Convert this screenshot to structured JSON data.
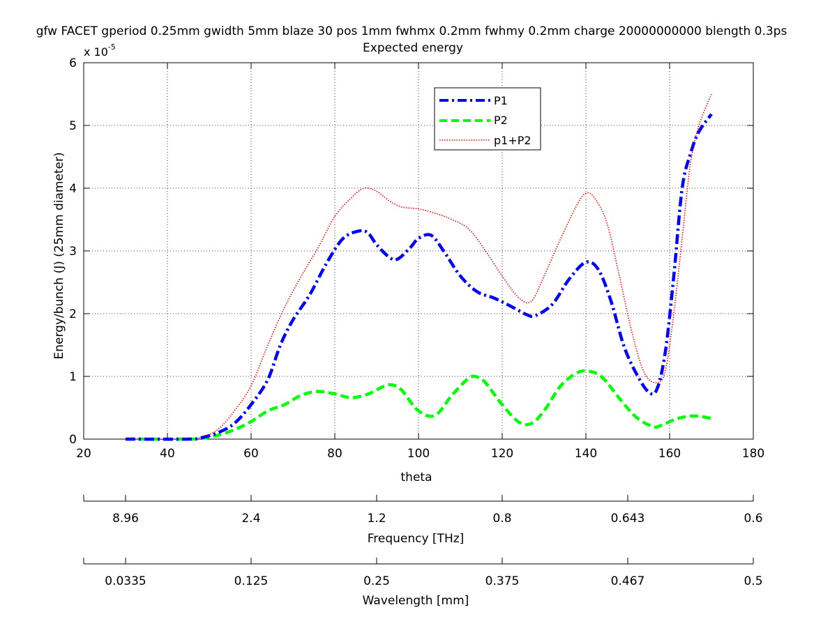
{
  "chart_data": {
    "type": "line",
    "title_line1": "gfw FACET gperiod 0.25mm gwidth 5mm blaze 30 pos 1mm fwhmx 0.2mm fwhmy 0.2mm charge 20000000000 blength 0.3ps",
    "title_line2": "Expected energy",
    "xlabel": "theta",
    "ylabel": "Energy/bunch (J) (25mm diameter)",
    "y_multiplier_base": "x 10",
    "y_multiplier_exp": "-5",
    "xlim": [
      20,
      180
    ],
    "ylim": [
      0,
      6
    ],
    "x_ticks": [
      20,
      40,
      60,
      80,
      100,
      120,
      140,
      160,
      180
    ],
    "y_ticks": [
      0,
      1,
      2,
      3,
      4,
      5,
      6
    ],
    "grid": true,
    "legend_position": "top-center",
    "series": [
      {
        "name": "P1",
        "color": "#0000ff",
        "style": "dash-dot",
        "x": [
          30,
          45,
          48,
          52,
          56,
          60,
          64,
          67,
          70,
          74,
          78,
          82,
          86,
          88,
          90,
          93,
          95,
          98,
          100,
          103,
          106,
          110,
          114,
          118,
          122,
          126,
          128,
          132,
          136,
          140,
          143,
          146,
          149,
          152,
          155,
          157,
          159,
          161,
          163,
          165,
          167,
          170
        ],
        "y": [
          0.0,
          0.0,
          0.02,
          0.1,
          0.25,
          0.55,
          0.95,
          1.5,
          1.9,
          2.3,
          2.8,
          3.2,
          3.32,
          3.28,
          3.1,
          2.9,
          2.87,
          3.05,
          3.2,
          3.25,
          3.0,
          2.6,
          2.35,
          2.25,
          2.12,
          1.98,
          1.97,
          2.15,
          2.55,
          2.82,
          2.7,
          2.2,
          1.5,
          1.05,
          0.75,
          0.8,
          1.4,
          2.6,
          4.0,
          4.55,
          4.9,
          5.18
        ]
      },
      {
        "name": "P2",
        "color": "#00ff00",
        "style": "dashed",
        "x": [
          30,
          45,
          48,
          52,
          56,
          60,
          64,
          68,
          72,
          76,
          80,
          84,
          88,
          92,
          94,
          96,
          100,
          104,
          108,
          112,
          114,
          116,
          120,
          124,
          127,
          130,
          134,
          138,
          141,
          144,
          148,
          152,
          156,
          158,
          162,
          166,
          170
        ],
        "y": [
          0.0,
          0.0,
          0.01,
          0.06,
          0.15,
          0.28,
          0.45,
          0.55,
          0.7,
          0.76,
          0.72,
          0.66,
          0.72,
          0.85,
          0.86,
          0.78,
          0.45,
          0.38,
          0.7,
          0.97,
          0.99,
          0.9,
          0.55,
          0.27,
          0.25,
          0.45,
          0.85,
          1.06,
          1.08,
          0.98,
          0.65,
          0.35,
          0.2,
          0.22,
          0.33,
          0.37,
          0.33
        ]
      },
      {
        "name": "p1+P2",
        "color": "#ff0000",
        "style": "dotted",
        "x": [
          30,
          45,
          48,
          52,
          56,
          60,
          64,
          68,
          72,
          76,
          80,
          84,
          87,
          90,
          93,
          96,
          100,
          104,
          108,
          112,
          116,
          120,
          124,
          127,
          130,
          134,
          138,
          140,
          142,
          145,
          148,
          151,
          154,
          157,
          159,
          161,
          163,
          165,
          167,
          170
        ],
        "y": [
          0.0,
          0.0,
          0.03,
          0.15,
          0.45,
          0.85,
          1.5,
          2.1,
          2.6,
          3.05,
          3.55,
          3.85,
          4.0,
          3.95,
          3.8,
          3.7,
          3.67,
          3.6,
          3.5,
          3.35,
          3.0,
          2.6,
          2.25,
          2.2,
          2.6,
          3.2,
          3.75,
          3.92,
          3.85,
          3.45,
          2.6,
          1.7,
          1.05,
          0.9,
          1.1,
          2.0,
          3.2,
          4.4,
          5.0,
          5.5
        ]
      }
    ],
    "secondary_axes": [
      {
        "label": "Frequency [THz]",
        "tick_x": [
          30,
          60,
          90,
          120,
          150,
          180
        ],
        "tick_labels": [
          "8.96",
          "2.4",
          "1.2",
          "0.8",
          "0.643",
          "0.6"
        ]
      },
      {
        "label": "Wavelength [mm]",
        "tick_x": [
          30,
          60,
          90,
          120,
          150,
          180
        ],
        "tick_labels": [
          "0.0335",
          "0.125",
          "0.25",
          "0.375",
          "0.467",
          "0.5"
        ]
      }
    ]
  }
}
